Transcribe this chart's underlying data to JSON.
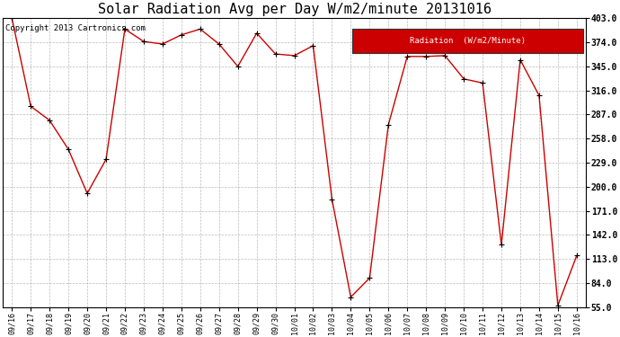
{
  "title": "Solar Radiation Avg per Day W/m2/minute 20131016",
  "copyright": "Copyright 2013 Cartronics.com",
  "legend_label": "Radiation  (W/m2/Minute)",
  "x_labels": [
    "09/16",
    "09/17",
    "09/18",
    "09/19",
    "09/20",
    "09/21",
    "09/22",
    "09/23",
    "09/24",
    "09/25",
    "09/26",
    "09/27",
    "09/28",
    "09/29",
    "09/30",
    "10/01",
    "10/02",
    "10/03",
    "10/04",
    "10/05",
    "10/06",
    "10/07",
    "10/08",
    "10/09",
    "10/10",
    "10/11",
    "10/12",
    "10/13",
    "10/14",
    "10/15",
    "10/16"
  ],
  "y_values": [
    403,
    297,
    280,
    245,
    192,
    233,
    390,
    375,
    372,
    383,
    390,
    372,
    345,
    385,
    360,
    358,
    370,
    185,
    67,
    90,
    275,
    357,
    357,
    358,
    330,
    325,
    130,
    353,
    310,
    57,
    117
  ],
  "y_ticks": [
    55.0,
    84.0,
    113.0,
    142.0,
    171.0,
    200.0,
    229.0,
    258.0,
    287.0,
    316.0,
    345.0,
    374.0,
    403.0
  ],
  "y_min": 55.0,
  "y_max": 403.0,
  "line_color": "#cc0000",
  "marker": "+",
  "marker_color": "#000000",
  "bg_color": "#ffffff",
  "plot_bg_color": "#ffffff",
  "grid_color": "#aaaaaa",
  "title_fontsize": 11,
  "copyright_fontsize": 6.5,
  "legend_bg": "#cc0000",
  "legend_text_color": "#ffffff",
  "figwidth": 6.9,
  "figheight": 3.75,
  "dpi": 100
}
